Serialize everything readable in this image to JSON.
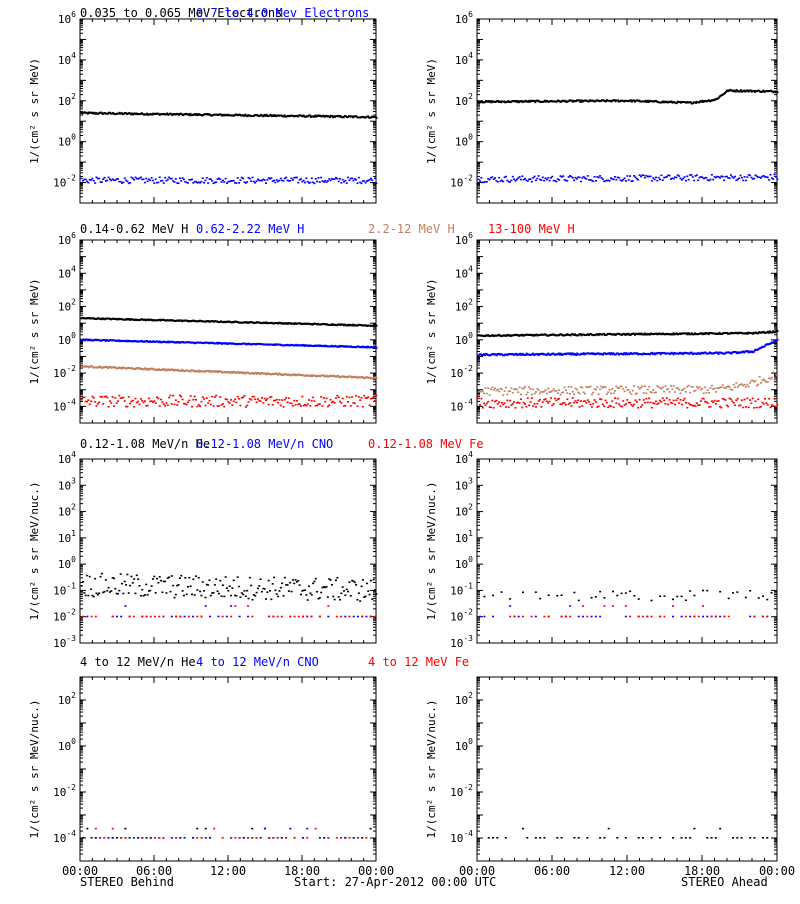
{
  "footer": {
    "left": "STEREO Behind",
    "center": "Start: 27-Apr-2012 00:00 UTC",
    "right": "STEREO Ahead"
  },
  "x_ticks": [
    "00:00",
    "06:00",
    "12:00",
    "18:00",
    "00:00"
  ],
  "colors": {
    "black": "#000000",
    "blue": "#0000ff",
    "tan": "#c08060",
    "red": "#ff0000"
  },
  "chart_data": [
    {
      "type": "scatter",
      "panel": "electrons",
      "ylabel": "1/(cm² s sr MeV)",
      "ylim_log10": [
        -3,
        6
      ],
      "ytick_exps": [
        -2,
        0,
        2,
        4,
        6
      ],
      "xlim_hours": [
        0,
        24
      ],
      "header": [
        {
          "text": "0.035 to 0.065 MeV Electrons",
          "color": "#000000"
        },
        {
          "text": "0.7 to 4.0 Mev Electrons",
          "color": "#0000ff"
        }
      ],
      "series": [
        {
          "name": "0.035 to 0.065 MeV Electrons",
          "color": "#000000",
          "side": "behind",
          "x": [
            0,
            6,
            12,
            18,
            24
          ],
          "log10_y": [
            1.4,
            1.35,
            1.3,
            1.25,
            1.2
          ],
          "noise": 0.04,
          "style": "line"
        },
        {
          "name": "0.7 to 4.0 Mev Electrons",
          "color": "#0000ff",
          "side": "behind",
          "x": [
            0,
            24
          ],
          "log10_y": [
            -1.9,
            -1.9
          ],
          "noise": 0.15,
          "style": "dots"
        },
        {
          "name": "0.035 to 0.065 MeV Electrons",
          "color": "#000000",
          "side": "ahead",
          "x": [
            0,
            12,
            17,
            19,
            20,
            24
          ],
          "log10_y": [
            1.95,
            2.0,
            1.9,
            2.05,
            2.5,
            2.45
          ],
          "noise": 0.04,
          "style": "line"
        },
        {
          "name": "0.7 to 4.0 Mev Electrons",
          "color": "#0000ff",
          "side": "ahead",
          "x": [
            0,
            24
          ],
          "log10_y": [
            -1.85,
            -1.75
          ],
          "noise": 0.15,
          "style": "dots"
        }
      ]
    },
    {
      "type": "scatter",
      "panel": "protons",
      "ylabel": "1/(cm² s sr MeV)",
      "ylim_log10": [
        -5,
        6
      ],
      "ytick_exps": [
        -4,
        -2,
        0,
        2,
        4,
        6
      ],
      "xlim_hours": [
        0,
        24
      ],
      "header": [
        {
          "text": "0.14-0.62 MeV H",
          "color": "#000000"
        },
        {
          "text": "0.62-2.22 MeV H",
          "color": "#0000ff"
        },
        {
          "text": "2.2-12 MeV H",
          "color": "#c08060"
        },
        {
          "text": "13-100 MeV H",
          "color": "#ff0000"
        }
      ],
      "series": [
        {
          "name": "0.14-0.62 MeV H",
          "color": "#000000",
          "side": "behind",
          "x": [
            0,
            24
          ],
          "log10_y": [
            1.3,
            0.85
          ],
          "noise": 0.03,
          "style": "line"
        },
        {
          "name": "0.62-2.22 MeV H",
          "color": "#0000ff",
          "side": "behind",
          "x": [
            0,
            24
          ],
          "log10_y": [
            0.0,
            -0.45
          ],
          "noise": 0.03,
          "style": "line"
        },
        {
          "name": "2.2-12 MeV H",
          "color": "#c08060",
          "side": "behind",
          "x": [
            0,
            24
          ],
          "log10_y": [
            -1.6,
            -2.3
          ],
          "noise": 0.04,
          "style": "line"
        },
        {
          "name": "13-100 MeV H",
          "color": "#ff0000",
          "side": "behind",
          "x": [
            0,
            24
          ],
          "log10_y": [
            -3.7,
            -3.7
          ],
          "noise": 0.35,
          "style": "dots"
        },
        {
          "name": "0.14-0.62 MeV H",
          "color": "#000000",
          "side": "ahead",
          "x": [
            0,
            22,
            24
          ],
          "log10_y": [
            0.25,
            0.4,
            0.5
          ],
          "noise": 0.04,
          "style": "line"
        },
        {
          "name": "0.62-2.22 MeV H",
          "color": "#0000ff",
          "side": "ahead",
          "x": [
            0,
            20,
            22,
            24
          ],
          "log10_y": [
            -0.9,
            -0.8,
            -0.7,
            0.0
          ],
          "noise": 0.05,
          "style": "line"
        },
        {
          "name": "2.2-12 MeV H",
          "color": "#c08060",
          "side": "ahead",
          "x": [
            0,
            19,
            20,
            22,
            24
          ],
          "log10_y": [
            -3.1,
            -3.0,
            -2.9,
            -2.6,
            -2.1
          ],
          "noise": 0.25,
          "style": "dots"
        },
        {
          "name": "13-100 MeV H",
          "color": "#ff0000",
          "side": "ahead",
          "x": [
            0,
            24
          ],
          "log10_y": [
            -3.8,
            -3.8
          ],
          "noise": 0.3,
          "style": "dots"
        }
      ]
    },
    {
      "type": "scatter",
      "panel": "ions",
      "ylabel": "1/(cm² s sr MeV/nuc.)",
      "ylim_log10": [
        -3,
        4
      ],
      "ytick_exps": [
        -3,
        -2,
        -1,
        0,
        1,
        2,
        3,
        4
      ],
      "xlim_hours": [
        0,
        24
      ],
      "header": [
        {
          "text": "0.12-1.08 MeV/n He",
          "color": "#000000"
        },
        {
          "text": "0.12-1.08 MeV/n CNO",
          "color": "#0000ff"
        },
        {
          "text": "0.12-1.08 MeV Fe",
          "color": "#ff0000"
        }
      ],
      "series": [
        {
          "name": "0.12-1.08 MeV/n He",
          "color": "#000000",
          "side": "behind",
          "x": [
            0,
            24
          ],
          "log10_y": [
            -0.8,
            -1.0
          ],
          "noise": 0.45,
          "style": "dots"
        },
        {
          "name": "0.12-1.08 MeV/n CNO",
          "color": "#0000ff",
          "side": "behind",
          "x": [
            0,
            24
          ],
          "log10_y": [
            -2.0,
            -2.0
          ],
          "noise": 0.0,
          "style": "sparse"
        },
        {
          "name": "0.12-1.08 MeV Fe",
          "color": "#ff0000",
          "side": "behind",
          "x": [
            0,
            24
          ],
          "log10_y": [
            -2.0,
            -2.0
          ],
          "noise": 0.0,
          "style": "sparse"
        },
        {
          "name": "0.12-1.08 MeV/n He",
          "color": "#000000",
          "side": "ahead",
          "x": [
            0,
            24
          ],
          "log10_y": [
            -1.2,
            -1.2
          ],
          "noise": 0.2,
          "style": "sparse"
        },
        {
          "name": "0.12-1.08 MeV/n CNO",
          "color": "#0000ff",
          "side": "ahead",
          "x": [
            0,
            24
          ],
          "log10_y": [
            -2.0,
            -2.0
          ],
          "noise": 0.0,
          "style": "sparse"
        },
        {
          "name": "0.12-1.08 MeV Fe",
          "color": "#ff0000",
          "side": "ahead",
          "x": [
            0,
            24
          ],
          "log10_y": [
            -2.0,
            -2.0
          ],
          "noise": 0.0,
          "style": "sparse"
        }
      ]
    },
    {
      "type": "scatter",
      "panel": "high_ions",
      "ylabel": "1/(cm² s sr MeV/nuc.)",
      "ylim_log10": [
        -5,
        3
      ],
      "ytick_exps": [
        -4,
        -2,
        0,
        2
      ],
      "xlim_hours": [
        0,
        24
      ],
      "header": [
        {
          "text": "4 to 12 MeV/n He",
          "color": "#000000"
        },
        {
          "text": "4 to 12 MeV/n CNO",
          "color": "#0000ff"
        },
        {
          "text": "4 to 12 MeV Fe",
          "color": "#ff0000"
        }
      ],
      "series": [
        {
          "name": "4 to 12 MeV/n He",
          "color": "#000000",
          "side": "behind",
          "x": [
            0,
            24
          ],
          "log10_y": [
            -4.0,
            -4.0
          ],
          "noise": 0.0,
          "style": "sparse"
        },
        {
          "name": "4 to 12 MeV/n CNO",
          "color": "#0000ff",
          "side": "behind",
          "x": [
            0,
            24
          ],
          "log10_y": [
            -4.0,
            -4.0
          ],
          "noise": 0.0,
          "style": "sparse"
        },
        {
          "name": "4 to 12 MeV Fe",
          "color": "#ff0000",
          "side": "behind",
          "x": [
            0,
            24
          ],
          "log10_y": [
            -4.0,
            -4.0
          ],
          "noise": 0.0,
          "style": "sparse"
        },
        {
          "name": "4 to 12 MeV/n He",
          "color": "#000000",
          "side": "ahead",
          "x": [
            0,
            24
          ],
          "log10_y": [
            -4.0,
            -4.0
          ],
          "noise": 0.0,
          "style": "sparse"
        }
      ]
    }
  ]
}
